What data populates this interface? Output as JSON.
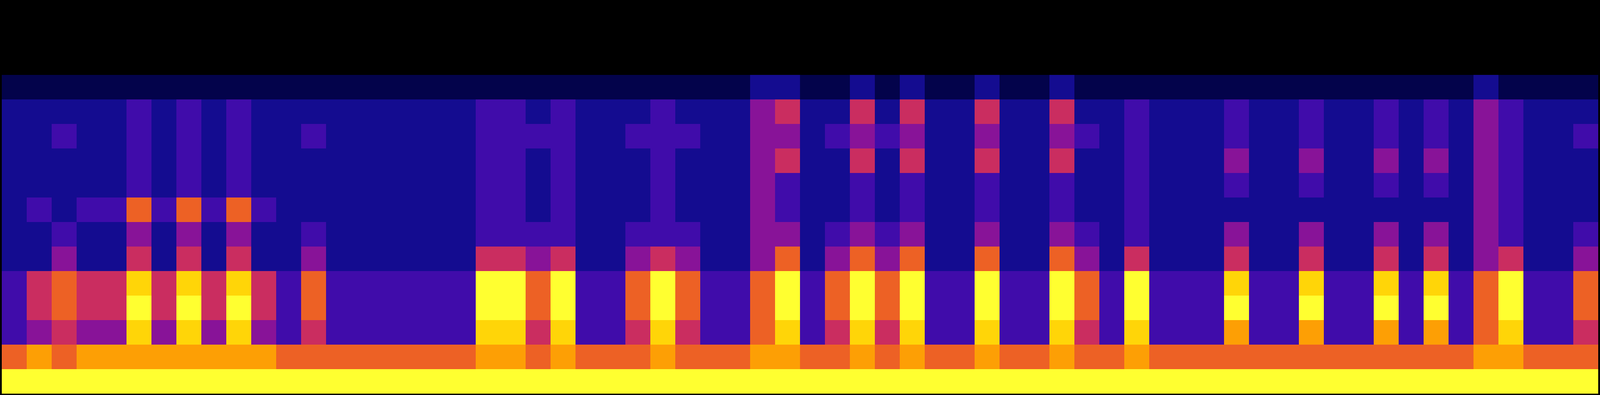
{
  "chart_data": {
    "type": "heatmap",
    "tick_labels": false,
    "cells": [
      [
        0,
        0,
        0,
        0,
        0,
        0,
        0,
        0,
        0,
        0,
        0,
        0,
        0,
        0,
        0,
        0,
        0,
        0,
        0,
        0,
        0,
        0,
        0,
        0,
        0,
        0,
        0,
        0,
        0,
        0,
        0,
        0,
        0,
        0,
        0,
        0,
        0,
        0,
        0,
        0,
        0,
        0,
        0,
        0,
        0,
        0,
        0,
        0,
        0,
        0,
        0,
        0,
        0,
        0,
        0,
        0,
        0,
        0,
        0,
        0,
        0,
        0,
        0,
        0
      ],
      [
        0,
        0,
        0,
        0,
        0,
        0,
        0,
        0,
        0,
        0,
        0,
        0,
        0,
        0,
        0,
        0,
        0,
        0,
        0,
        0,
        0,
        0,
        0,
        0,
        0,
        0,
        0,
        0,
        0,
        0,
        0,
        0,
        0,
        0,
        0,
        0,
        0,
        0,
        0,
        0,
        0,
        0,
        0,
        0,
        0,
        0,
        0,
        0,
        0,
        0,
        0,
        0,
        0,
        0,
        0,
        0,
        0,
        0,
        0,
        0,
        0,
        0,
        0,
        0
      ],
      [
        0,
        0,
        0,
        0,
        0,
        0,
        0,
        0,
        0,
        0,
        0,
        0,
        0,
        0,
        0,
        0,
        0,
        0,
        0,
        0,
        0,
        0,
        0,
        0,
        0,
        0,
        0,
        0,
        0,
        0,
        0,
        0,
        0,
        0,
        0,
        0,
        0,
        0,
        0,
        0,
        0,
        0,
        0,
        0,
        0,
        0,
        0,
        0,
        0,
        0,
        0,
        0,
        0,
        0,
        0,
        0,
        0,
        0,
        0,
        0,
        0,
        0,
        0,
        0
      ],
      [
        1,
        1,
        1,
        1,
        1,
        1,
        1,
        1,
        1,
        1,
        1,
        1,
        1,
        1,
        1,
        1,
        1,
        1,
        1,
        1,
        1,
        1,
        1,
        1,
        1,
        1,
        1,
        1,
        1,
        1,
        2,
        2,
        1,
        1,
        2,
        1,
        2,
        1,
        1,
        2,
        1,
        1,
        2,
        1,
        1,
        1,
        1,
        1,
        1,
        1,
        1,
        1,
        1,
        1,
        1,
        1,
        1,
        1,
        1,
        2,
        1,
        1,
        1,
        1
      ],
      [
        2,
        2,
        2,
        2,
        2,
        3,
        2,
        3,
        2,
        3,
        2,
        2,
        2,
        2,
        2,
        2,
        2,
        2,
        2,
        3,
        3,
        2,
        3,
        2,
        2,
        2,
        3,
        2,
        2,
        2,
        4,
        5,
        2,
        2,
        5,
        2,
        5,
        2,
        2,
        5,
        2,
        2,
        5,
        2,
        2,
        3,
        2,
        2,
        2,
        3,
        2,
        2,
        3,
        2,
        2,
        3,
        2,
        3,
        2,
        4,
        3,
        2,
        2,
        2
      ],
      [
        2,
        2,
        3,
        2,
        2,
        3,
        2,
        3,
        2,
        3,
        2,
        2,
        3,
        2,
        2,
        2,
        2,
        2,
        2,
        3,
        3,
        3,
        3,
        2,
        2,
        3,
        3,
        3,
        2,
        2,
        4,
        4,
        2,
        3,
        4,
        3,
        4,
        2,
        2,
        4,
        2,
        2,
        4,
        3,
        2,
        3,
        2,
        2,
        2,
        3,
        2,
        2,
        3,
        2,
        2,
        3,
        2,
        3,
        2,
        4,
        3,
        2,
        2,
        3
      ],
      [
        2,
        2,
        2,
        2,
        2,
        3,
        2,
        3,
        2,
        3,
        2,
        2,
        2,
        2,
        2,
        2,
        2,
        2,
        2,
        3,
        3,
        2,
        3,
        2,
        2,
        2,
        3,
        2,
        2,
        2,
        4,
        5,
        2,
        2,
        5,
        2,
        5,
        2,
        2,
        5,
        2,
        2,
        5,
        2,
        2,
        3,
        2,
        2,
        2,
        4,
        2,
        2,
        4,
        2,
        2,
        4,
        2,
        4,
        2,
        4,
        3,
        2,
        2,
        2
      ],
      [
        2,
        2,
        2,
        2,
        2,
        3,
        2,
        3,
        2,
        3,
        2,
        2,
        2,
        2,
        2,
        2,
        2,
        2,
        2,
        3,
        3,
        2,
        3,
        2,
        2,
        2,
        3,
        2,
        2,
        2,
        4,
        3,
        2,
        2,
        3,
        2,
        3,
        2,
        2,
        3,
        2,
        2,
        3,
        2,
        2,
        3,
        2,
        2,
        2,
        3,
        2,
        2,
        3,
        2,
        2,
        3,
        2,
        3,
        2,
        4,
        3,
        2,
        2,
        2
      ],
      [
        2,
        3,
        2,
        3,
        3,
        6,
        3,
        6,
        3,
        6,
        3,
        2,
        2,
        2,
        2,
        2,
        2,
        2,
        2,
        3,
        3,
        2,
        3,
        2,
        2,
        2,
        3,
        2,
        2,
        2,
        4,
        3,
        2,
        2,
        3,
        2,
        3,
        2,
        2,
        3,
        2,
        2,
        3,
        2,
        2,
        3,
        2,
        2,
        2,
        2,
        2,
        2,
        2,
        2,
        2,
        2,
        2,
        2,
        2,
        4,
        3,
        2,
        2,
        2
      ],
      [
        2,
        2,
        3,
        2,
        2,
        4,
        2,
        4,
        2,
        4,
        2,
        2,
        3,
        2,
        2,
        2,
        2,
        2,
        2,
        3,
        3,
        3,
        3,
        2,
        2,
        3,
        3,
        3,
        2,
        2,
        4,
        4,
        2,
        3,
        4,
        3,
        4,
        2,
        2,
        4,
        2,
        2,
        4,
        3,
        2,
        3,
        2,
        2,
        2,
        4,
        2,
        2,
        4,
        2,
        2,
        4,
        2,
        4,
        2,
        4,
        3,
        2,
        2,
        3
      ],
      [
        2,
        2,
        4,
        2,
        2,
        5,
        2,
        5,
        2,
        5,
        2,
        2,
        4,
        2,
        2,
        2,
        2,
        2,
        2,
        5,
        5,
        4,
        5,
        2,
        2,
        4,
        5,
        4,
        2,
        2,
        4,
        6,
        2,
        4,
        6,
        4,
        6,
        2,
        2,
        6,
        2,
        2,
        6,
        4,
        2,
        5,
        2,
        2,
        2,
        5,
        2,
        2,
        5,
        2,
        2,
        5,
        2,
        5,
        2,
        4,
        5,
        2,
        2,
        4
      ],
      [
        3,
        5,
        6,
        5,
        5,
        8,
        5,
        8,
        5,
        8,
        5,
        3,
        6,
        3,
        3,
        3,
        3,
        3,
        3,
        9,
        9,
        6,
        9,
        3,
        3,
        6,
        9,
        6,
        3,
        3,
        6,
        9,
        3,
        6,
        9,
        6,
        9,
        3,
        3,
        9,
        3,
        3,
        9,
        6,
        3,
        9,
        3,
        3,
        3,
        8,
        3,
        3,
        8,
        3,
        3,
        8,
        3,
        8,
        3,
        6,
        9,
        3,
        3,
        6
      ],
      [
        3,
        5,
        6,
        5,
        5,
        9,
        5,
        9,
        5,
        9,
        5,
        3,
        6,
        3,
        3,
        3,
        3,
        3,
        3,
        9,
        9,
        6,
        9,
        3,
        3,
        6,
        9,
        6,
        3,
        3,
        6,
        9,
        3,
        6,
        9,
        6,
        9,
        3,
        3,
        9,
        3,
        3,
        9,
        6,
        3,
        9,
        3,
        3,
        3,
        9,
        3,
        3,
        9,
        3,
        3,
        9,
        3,
        9,
        3,
        6,
        9,
        3,
        3,
        6
      ],
      [
        3,
        4,
        5,
        4,
        4,
        8,
        4,
        8,
        4,
        8,
        4,
        3,
        5,
        3,
        3,
        3,
        3,
        3,
        3,
        8,
        8,
        5,
        8,
        3,
        3,
        5,
        8,
        5,
        3,
        3,
        6,
        8,
        3,
        5,
        8,
        5,
        8,
        3,
        3,
        8,
        3,
        3,
        8,
        5,
        3,
        8,
        3,
        3,
        3,
        7,
        3,
        3,
        7,
        3,
        3,
        7,
        3,
        7,
        3,
        6,
        8,
        3,
        3,
        5
      ],
      [
        6,
        7,
        6,
        7,
        7,
        7,
        7,
        7,
        7,
        7,
        7,
        6,
        6,
        6,
        6,
        6,
        6,
        6,
        6,
        7,
        7,
        6,
        7,
        6,
        6,
        6,
        7,
        6,
        6,
        6,
        7,
        7,
        6,
        6,
        7,
        6,
        7,
        6,
        6,
        7,
        6,
        6,
        7,
        6,
        6,
        7,
        6,
        6,
        6,
        6,
        6,
        6,
        6,
        6,
        6,
        6,
        6,
        6,
        6,
        7,
        7,
        6,
        6,
        6
      ],
      [
        9,
        9,
        9,
        9,
        9,
        9,
        9,
        9,
        9,
        9,
        9,
        9,
        9,
        9,
        9,
        9,
        9,
        9,
        9,
        9,
        9,
        9,
        9,
        9,
        9,
        9,
        9,
        9,
        9,
        9,
        9,
        9,
        9,
        9,
        9,
        9,
        9,
        9,
        9,
        9,
        9,
        9,
        9,
        9,
        9,
        9,
        9,
        9,
        9,
        9,
        9,
        9,
        9,
        9,
        9,
        9,
        9,
        9,
        9,
        9,
        9,
        9,
        9,
        9
      ]
    ]
  }
}
